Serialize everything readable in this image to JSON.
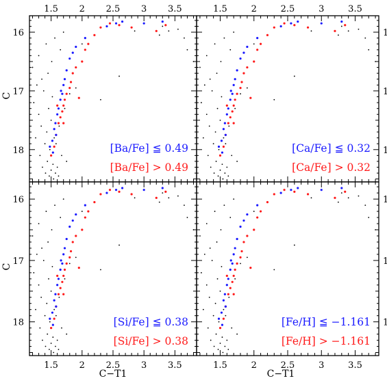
{
  "colors": {
    "low": "#1a1aff",
    "high": "#ff1a1a",
    "field": "#000000"
  },
  "chart_data": {
    "type": "scatter",
    "xlabel": "C−T1",
    "ylabel": "C",
    "xlim": [
      1.15,
      3.85
    ],
    "ylim": [
      18.55,
      15.72
    ],
    "x_ticks": [
      1.5,
      2,
      2.5,
      3,
      3.5
    ],
    "x_tick_labels": [
      "1.5",
      "2",
      "2.5",
      "3",
      "3.5"
    ],
    "y_ticks": [
      16,
      17,
      18
    ],
    "y_tick_labels": [
      "16",
      "17",
      "18"
    ],
    "field_stars": [
      [
        1.2,
        16.6
      ],
      [
        1.22,
        17.2
      ],
      [
        1.25,
        17.8
      ],
      [
        1.27,
        16.9
      ],
      [
        1.3,
        16.4
      ],
      [
        1.3,
        17.4
      ],
      [
        1.32,
        18.1
      ],
      [
        1.34,
        17.6
      ],
      [
        1.35,
        16.8
      ],
      [
        1.36,
        18.3
      ],
      [
        1.38,
        17.0
      ],
      [
        1.4,
        17.9
      ],
      [
        1.41,
        18.4
      ],
      [
        1.42,
        16.2
      ],
      [
        1.43,
        17.7
      ],
      [
        1.44,
        18.2
      ],
      [
        1.45,
        16.7
      ],
      [
        1.46,
        17.3
      ],
      [
        1.47,
        18.45
      ],
      [
        1.48,
        18.0
      ],
      [
        1.5,
        17.5
      ],
      [
        1.5,
        18.35
      ],
      [
        1.51,
        16.5
      ],
      [
        1.52,
        17.1
      ],
      [
        1.53,
        18.25
      ],
      [
        1.54,
        18.5
      ],
      [
        1.55,
        17.8
      ],
      [
        1.56,
        16.1
      ],
      [
        1.57,
        18.4
      ],
      [
        1.58,
        17.9
      ],
      [
        1.6,
        18.3
      ],
      [
        1.62,
        18.45
      ],
      [
        1.63,
        17.6
      ],
      [
        1.65,
        16.3
      ],
      [
        1.67,
        18.1
      ],
      [
        1.7,
        16.0
      ],
      [
        1.72,
        17.3
      ],
      [
        1.75,
        18.2
      ],
      [
        1.8,
        17.05
      ],
      [
        1.9,
        16.95
      ],
      [
        2.0,
        16.2
      ],
      [
        2.3,
        17.15
      ],
      [
        2.55,
        15.85
      ],
      [
        2.6,
        16.75
      ],
      [
        2.85,
        15.98
      ],
      [
        3.25,
        16.05
      ],
      [
        3.3,
        15.9
      ],
      [
        3.4,
        15.98
      ],
      [
        3.55,
        15.95
      ],
      [
        3.65,
        16.1
      ],
      [
        3.7,
        16.3
      ],
      [
        3.8,
        16.5
      ]
    ],
    "panels": [
      {
        "legend_low": "[Ba/Fe] ≦ 0.49",
        "legend_high": "[Ba/Fe] > 0.49",
        "low": [
          [
            1.48,
            17.95
          ],
          [
            1.52,
            17.85
          ],
          [
            1.55,
            17.65
          ],
          [
            1.57,
            17.55
          ],
          [
            1.6,
            17.4
          ],
          [
            1.62,
            17.3
          ],
          [
            1.65,
            17.15
          ],
          [
            1.66,
            17.0
          ],
          [
            1.7,
            16.9
          ],
          [
            1.72,
            16.8
          ],
          [
            1.75,
            16.65
          ],
          [
            1.8,
            16.45
          ],
          [
            1.85,
            16.35
          ],
          [
            1.9,
            16.25
          ],
          [
            2.05,
            16.1
          ],
          [
            2.4,
            15.9
          ],
          [
            2.55,
            15.85
          ],
          [
            2.65,
            15.82
          ],
          [
            3.0,
            15.85
          ],
          [
            3.3,
            15.82
          ],
          [
            1.58,
            17.75
          ],
          [
            1.68,
            17.05
          ],
          [
            1.53,
            18.05
          ]
        ],
        "high": [
          [
            1.5,
            18.1
          ],
          [
            1.55,
            17.95
          ],
          [
            1.58,
            17.75
          ],
          [
            1.62,
            17.55
          ],
          [
            1.65,
            17.45
          ],
          [
            1.68,
            17.35
          ],
          [
            1.7,
            17.25
          ],
          [
            1.72,
            17.15
          ],
          [
            1.75,
            17.05
          ],
          [
            1.8,
            16.95
          ],
          [
            1.82,
            16.85
          ],
          [
            1.85,
            16.7
          ],
          [
            1.9,
            16.6
          ],
          [
            2.0,
            16.5
          ],
          [
            2.05,
            16.3
          ],
          [
            2.1,
            16.2
          ],
          [
            2.2,
            16.05
          ],
          [
            2.3,
            15.92
          ],
          [
            2.45,
            15.85
          ],
          [
            2.6,
            15.88
          ],
          [
            2.8,
            15.92
          ],
          [
            3.35,
            15.88
          ],
          [
            3.2,
            15.98
          ],
          [
            1.95,
            17.12
          ],
          [
            1.6,
            17.25
          ],
          [
            1.7,
            17.55
          ]
        ]
      },
      {
        "legend_low": "[Ca/Fe] ≦ 0.32",
        "legend_high": "[Ca/Fe] > 0.32",
        "low": [
          [
            1.48,
            17.95
          ],
          [
            1.52,
            17.85
          ],
          [
            1.55,
            17.65
          ],
          [
            1.57,
            17.55
          ],
          [
            1.6,
            17.4
          ],
          [
            1.62,
            17.3
          ],
          [
            1.65,
            17.15
          ],
          [
            1.66,
            17.0
          ],
          [
            1.7,
            16.9
          ],
          [
            1.72,
            16.8
          ],
          [
            1.75,
            16.65
          ],
          [
            1.8,
            16.45
          ],
          [
            1.85,
            16.35
          ],
          [
            1.9,
            16.25
          ],
          [
            2.05,
            16.1
          ],
          [
            2.4,
            15.9
          ],
          [
            2.55,
            15.85
          ],
          [
            2.65,
            15.82
          ],
          [
            3.0,
            15.85
          ],
          [
            3.3,
            15.82
          ],
          [
            1.58,
            17.75
          ],
          [
            1.68,
            17.05
          ],
          [
            1.53,
            18.05
          ]
        ],
        "high": [
          [
            1.5,
            18.1
          ],
          [
            1.55,
            17.95
          ],
          [
            1.58,
            17.75
          ],
          [
            1.62,
            17.55
          ],
          [
            1.65,
            17.45
          ],
          [
            1.68,
            17.35
          ],
          [
            1.7,
            17.25
          ],
          [
            1.72,
            17.15
          ],
          [
            1.75,
            17.05
          ],
          [
            1.8,
            16.95
          ],
          [
            1.82,
            16.85
          ],
          [
            1.85,
            16.7
          ],
          [
            1.9,
            16.6
          ],
          [
            2.0,
            16.5
          ],
          [
            2.05,
            16.3
          ],
          [
            2.1,
            16.2
          ],
          [
            2.2,
            16.05
          ],
          [
            2.3,
            15.92
          ],
          [
            2.45,
            15.85
          ],
          [
            2.6,
            15.88
          ],
          [
            2.8,
            15.92
          ],
          [
            3.35,
            15.88
          ],
          [
            3.2,
            15.98
          ],
          [
            1.95,
            17.12
          ],
          [
            1.6,
            17.25
          ],
          [
            1.7,
            17.55
          ]
        ]
      },
      {
        "legend_low": "[Si/Fe] ≦ 0.38",
        "legend_high": "[Si/Fe] > 0.38",
        "low": [
          [
            1.48,
            17.95
          ],
          [
            1.52,
            17.85
          ],
          [
            1.55,
            17.65
          ],
          [
            1.57,
            17.55
          ],
          [
            1.6,
            17.4
          ],
          [
            1.62,
            17.3
          ],
          [
            1.65,
            17.15
          ],
          [
            1.66,
            17.0
          ],
          [
            1.7,
            16.9
          ],
          [
            1.72,
            16.8
          ],
          [
            1.75,
            16.65
          ],
          [
            1.8,
            16.45
          ],
          [
            1.85,
            16.35
          ],
          [
            1.9,
            16.25
          ],
          [
            2.05,
            16.1
          ],
          [
            2.4,
            15.9
          ],
          [
            2.55,
            15.85
          ],
          [
            2.65,
            15.82
          ],
          [
            3.0,
            15.85
          ],
          [
            3.3,
            15.82
          ],
          [
            1.58,
            17.75
          ],
          [
            1.68,
            17.05
          ],
          [
            1.53,
            18.05
          ]
        ],
        "high": [
          [
            1.5,
            18.1
          ],
          [
            1.55,
            17.95
          ],
          [
            1.58,
            17.75
          ],
          [
            1.62,
            17.55
          ],
          [
            1.65,
            17.45
          ],
          [
            1.68,
            17.35
          ],
          [
            1.7,
            17.25
          ],
          [
            1.72,
            17.15
          ],
          [
            1.75,
            17.05
          ],
          [
            1.8,
            16.95
          ],
          [
            1.82,
            16.85
          ],
          [
            1.85,
            16.7
          ],
          [
            1.9,
            16.6
          ],
          [
            2.0,
            16.5
          ],
          [
            2.05,
            16.3
          ],
          [
            2.1,
            16.2
          ],
          [
            2.2,
            16.05
          ],
          [
            2.3,
            15.92
          ],
          [
            2.45,
            15.85
          ],
          [
            2.6,
            15.88
          ],
          [
            2.8,
            15.92
          ],
          [
            3.35,
            15.88
          ],
          [
            3.2,
            15.98
          ],
          [
            1.95,
            17.12
          ],
          [
            1.6,
            17.25
          ],
          [
            1.7,
            17.55
          ]
        ]
      },
      {
        "legend_low": "[Fe/H] ≦ −1.161",
        "legend_high": "[Fe/H] > −1.161",
        "low": [
          [
            1.48,
            17.95
          ],
          [
            1.52,
            17.85
          ],
          [
            1.55,
            17.65
          ],
          [
            1.57,
            17.55
          ],
          [
            1.6,
            17.4
          ],
          [
            1.62,
            17.3
          ],
          [
            1.65,
            17.15
          ],
          [
            1.66,
            17.0
          ],
          [
            1.7,
            16.9
          ],
          [
            1.72,
            16.8
          ],
          [
            1.75,
            16.65
          ],
          [
            1.8,
            16.45
          ],
          [
            1.85,
            16.35
          ],
          [
            1.9,
            16.25
          ],
          [
            2.05,
            16.1
          ],
          [
            2.4,
            15.9
          ],
          [
            2.55,
            15.85
          ],
          [
            2.65,
            15.82
          ],
          [
            3.0,
            15.85
          ],
          [
            3.3,
            15.82
          ],
          [
            1.58,
            17.75
          ],
          [
            1.68,
            17.05
          ],
          [
            1.53,
            18.05
          ]
        ],
        "high": [
          [
            1.5,
            18.1
          ],
          [
            1.55,
            17.95
          ],
          [
            1.58,
            17.75
          ],
          [
            1.62,
            17.55
          ],
          [
            1.65,
            17.45
          ],
          [
            1.68,
            17.35
          ],
          [
            1.7,
            17.25
          ],
          [
            1.72,
            17.15
          ],
          [
            1.75,
            17.05
          ],
          [
            1.8,
            16.95
          ],
          [
            1.82,
            16.85
          ],
          [
            1.85,
            16.7
          ],
          [
            1.9,
            16.6
          ],
          [
            2.0,
            16.5
          ],
          [
            2.05,
            16.3
          ],
          [
            2.1,
            16.2
          ],
          [
            2.2,
            16.05
          ],
          [
            2.3,
            15.92
          ],
          [
            2.45,
            15.85
          ],
          [
            2.6,
            15.88
          ],
          [
            2.8,
            15.92
          ],
          [
            3.35,
            15.88
          ],
          [
            3.2,
            15.98
          ],
          [
            1.95,
            17.12
          ],
          [
            1.6,
            17.25
          ],
          [
            1.7,
            17.55
          ]
        ]
      }
    ]
  }
}
